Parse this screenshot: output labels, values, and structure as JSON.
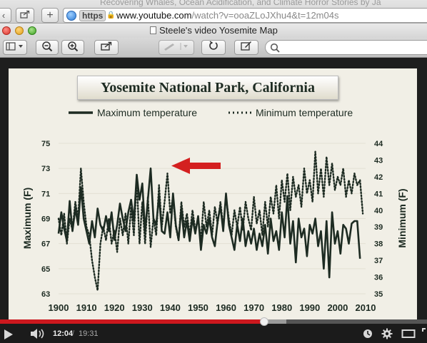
{
  "browser": {
    "background_tab_title": "Recovering Whales, Ocean Acidification, and Climate Horror Stories by Ja",
    "url": {
      "protocol_badge": "https",
      "host": "www.youtube.com",
      "path": "/watch?v=ooaZLoJXhu4&t=12m04s"
    },
    "window_title": "Steele's video Yosemite Map",
    "toolbar_icons": [
      "sidebar-icon",
      "zoom-out-icon",
      "zoom-in-icon",
      "share-icon",
      "annotate-icon",
      "rotate-icon",
      "edit-icon",
      "search-icon"
    ]
  },
  "slide": {
    "title": "Yosemite National Park, California",
    "legend": {
      "max_label": "Maximum temperature",
      "min_label": "Minimum temperature"
    }
  },
  "chart_data": {
    "type": "line",
    "title": "Yosemite National Park, California",
    "xlabel": "",
    "ylabel": "Maximum (F)",
    "y2label": "Minimum (F)",
    "xlim": [
      1900,
      2010
    ],
    "ylim": [
      63,
      75
    ],
    "y2lim": [
      35,
      44
    ],
    "x_ticks": [
      "1900",
      "1910",
      "1920",
      "1930",
      "1940",
      "1950",
      "1960",
      "1970",
      "1980",
      "1990",
      "2000",
      "2010"
    ],
    "y_ticks": [
      "63",
      "65",
      "67",
      "69",
      "71",
      "73",
      "75"
    ],
    "y2_ticks": [
      "35",
      "36",
      "37",
      "38",
      "39",
      "40",
      "41",
      "42",
      "43",
      "44"
    ],
    "legend_position": "top",
    "annotation": "red arrow pointing at the 1933 maximum peak",
    "series": [
      {
        "name": "Maximum temperature",
        "style": "solid",
        "axis": "left",
        "points": [
          [
            1900,
            67.8
          ],
          [
            1901,
            69.5
          ],
          [
            1902,
            68.2
          ],
          [
            1903,
            67.2
          ],
          [
            1904,
            70.4
          ],
          [
            1905,
            68.0
          ],
          [
            1906,
            69.8
          ],
          [
            1907,
            68.5
          ],
          [
            1908,
            71.5
          ],
          [
            1909,
            69.0
          ],
          [
            1910,
            68.0
          ],
          [
            1911,
            67.0
          ],
          [
            1912,
            68.8
          ],
          [
            1913,
            67.5
          ],
          [
            1914,
            69.8
          ],
          [
            1915,
            68.5
          ],
          [
            1916,
            68.0
          ],
          [
            1917,
            69.2
          ],
          [
            1918,
            68.0
          ],
          [
            1919,
            69.5
          ],
          [
            1920,
            67.3
          ],
          [
            1921,
            68.5
          ],
          [
            1922,
            70.2
          ],
          [
            1923,
            69.0
          ],
          [
            1924,
            68.0
          ],
          [
            1925,
            69.5
          ],
          [
            1926,
            70.5
          ],
          [
            1927,
            68.8
          ],
          [
            1928,
            72.5
          ],
          [
            1929,
            70.5
          ],
          [
            1930,
            71.8
          ],
          [
            1931,
            68.0
          ],
          [
            1932,
            70.5
          ],
          [
            1933,
            73.0
          ],
          [
            1934,
            69.0
          ],
          [
            1935,
            68.5
          ],
          [
            1936,
            70.8
          ],
          [
            1937,
            68.0
          ],
          [
            1938,
            67.8
          ],
          [
            1939,
            69.5
          ],
          [
            1940,
            67.5
          ],
          [
            1941,
            71.0
          ],
          [
            1942,
            68.5
          ],
          [
            1943,
            67.3
          ],
          [
            1944,
            69.8
          ],
          [
            1945,
            67.5
          ],
          [
            1946,
            68.8
          ],
          [
            1947,
            67.2
          ],
          [
            1948,
            69.0
          ],
          [
            1949,
            67.8
          ],
          [
            1950,
            69.2
          ],
          [
            1951,
            66.5
          ],
          [
            1952,
            68.5
          ],
          [
            1953,
            67.8
          ],
          [
            1954,
            69.0
          ],
          [
            1955,
            67.5
          ],
          [
            1956,
            66.8
          ],
          [
            1957,
            68.8
          ],
          [
            1958,
            70.0
          ],
          [
            1959,
            68.0
          ],
          [
            1960,
            71.0
          ],
          [
            1961,
            68.5
          ],
          [
            1962,
            67.5
          ],
          [
            1963,
            66.5
          ],
          [
            1964,
            68.5
          ],
          [
            1965,
            67.2
          ],
          [
            1966,
            69.0
          ],
          [
            1967,
            66.8
          ],
          [
            1968,
            68.0
          ],
          [
            1969,
            67.0
          ],
          [
            1970,
            68.2
          ],
          [
            1971,
            66.5
          ],
          [
            1972,
            67.8
          ],
          [
            1973,
            66.8
          ],
          [
            1974,
            68.5
          ],
          [
            1975,
            66.2
          ],
          [
            1976,
            69.0
          ],
          [
            1977,
            67.2
          ],
          [
            1978,
            68.0
          ],
          [
            1979,
            66.5
          ],
          [
            1980,
            69.5
          ],
          [
            1981,
            67.5
          ],
          [
            1982,
            70.8
          ],
          [
            1983,
            67.0
          ],
          [
            1984,
            68.8
          ],
          [
            1985,
            65.5
          ],
          [
            1986,
            69.0
          ],
          [
            1987,
            67.5
          ],
          [
            1988,
            68.2
          ],
          [
            1989,
            66.0
          ],
          [
            1990,
            68.5
          ],
          [
            1991,
            67.8
          ],
          [
            1992,
            69.0
          ],
          [
            1993,
            66.8
          ],
          [
            1994,
            68.0
          ],
          [
            1995,
            65.0
          ],
          [
            1996,
            68.8
          ],
          [
            1997,
            64.3
          ],
          [
            1998,
            69.5
          ],
          [
            1999,
            67.0
          ],
          [
            2000,
            68.0
          ],
          [
            2001,
            66.2
          ],
          [
            2002,
            68.5
          ],
          [
            2003,
            68.2
          ],
          [
            2004,
            67.0
          ],
          [
            2005,
            68.6
          ],
          [
            2006,
            68.8
          ],
          [
            2007,
            68.8
          ],
          [
            2008,
            65.8
          ]
        ]
      },
      {
        "name": "Minimum temperature",
        "style": "dotted",
        "axis": "right",
        "points": [
          [
            1900,
            39.5
          ],
          [
            1901,
            38.5
          ],
          [
            1902,
            39.8
          ],
          [
            1903,
            38.0
          ],
          [
            1904,
            39.5
          ],
          [
            1905,
            38.8
          ],
          [
            1906,
            40.5
          ],
          [
            1907,
            39.5
          ],
          [
            1908,
            42.5
          ],
          [
            1909,
            40.5
          ],
          [
            1910,
            39.0
          ],
          [
            1911,
            38.5
          ],
          [
            1912,
            37.0
          ],
          [
            1913,
            36.0
          ],
          [
            1914,
            35.2
          ],
          [
            1915,
            38.0
          ],
          [
            1916,
            39.0
          ],
          [
            1917,
            38.2
          ],
          [
            1918,
            39.5
          ],
          [
            1919,
            38.0
          ],
          [
            1920,
            38.8
          ],
          [
            1921,
            37.5
          ],
          [
            1922,
            39.5
          ],
          [
            1923,
            38.5
          ],
          [
            1924,
            39.8
          ],
          [
            1925,
            38.0
          ],
          [
            1926,
            40.2
          ],
          [
            1927,
            38.5
          ],
          [
            1928,
            41.8
          ],
          [
            1929,
            38.0
          ],
          [
            1930,
            40.5
          ],
          [
            1931,
            38.0
          ],
          [
            1932,
            40.8
          ],
          [
            1933,
            37.8
          ],
          [
            1934,
            39.5
          ],
          [
            1935,
            38.5
          ],
          [
            1936,
            41.5
          ],
          [
            1937,
            39.0
          ],
          [
            1938,
            40.5
          ],
          [
            1939,
            42.2
          ],
          [
            1940,
            39.8
          ],
          [
            1941,
            40.8
          ],
          [
            1942,
            39.0
          ],
          [
            1943,
            38.2
          ],
          [
            1944,
            40.5
          ],
          [
            1945,
            39.0
          ],
          [
            1946,
            39.8
          ],
          [
            1947,
            38.5
          ],
          [
            1948,
            40.0
          ],
          [
            1949,
            38.8
          ],
          [
            1950,
            39.5
          ],
          [
            1951,
            38.2
          ],
          [
            1952,
            40.5
          ],
          [
            1953,
            39.0
          ],
          [
            1954,
            40.0
          ],
          [
            1955,
            38.5
          ],
          [
            1956,
            40.2
          ],
          [
            1957,
            39.2
          ],
          [
            1958,
            40.5
          ],
          [
            1959,
            39.0
          ],
          [
            1960,
            40.8
          ],
          [
            1961,
            39.5
          ],
          [
            1962,
            38.5
          ],
          [
            1963,
            40.0
          ],
          [
            1964,
            39.0
          ],
          [
            1965,
            40.2
          ],
          [
            1966,
            38.8
          ],
          [
            1967,
            40.5
          ],
          [
            1968,
            39.5
          ],
          [
            1969,
            38.8
          ],
          [
            1970,
            40.8
          ],
          [
            1971,
            39.2
          ],
          [
            1972,
            40.0
          ],
          [
            1973,
            38.5
          ],
          [
            1974,
            40.5
          ],
          [
            1975,
            39.0
          ],
          [
            1976,
            40.8
          ],
          [
            1977,
            39.8
          ],
          [
            1978,
            41.5
          ],
          [
            1979,
            39.5
          ],
          [
            1980,
            41.8
          ],
          [
            1981,
            40.5
          ],
          [
            1982,
            42.2
          ],
          [
            1983,
            40.0
          ],
          [
            1984,
            42.0
          ],
          [
            1985,
            40.8
          ],
          [
            1986,
            41.5
          ],
          [
            1987,
            40.2
          ],
          [
            1988,
            42.5
          ],
          [
            1989,
            41.0
          ],
          [
            1990,
            41.8
          ],
          [
            1991,
            40.5
          ],
          [
            1992,
            43.5
          ],
          [
            1993,
            41.0
          ],
          [
            1994,
            42.5
          ],
          [
            1995,
            40.8
          ],
          [
            1996,
            43.2
          ],
          [
            1997,
            41.5
          ],
          [
            1998,
            42.8
          ],
          [
            1999,
            41.2
          ],
          [
            2000,
            42.0
          ],
          [
            2001,
            41.5
          ],
          [
            2002,
            42.5
          ],
          [
            2003,
            40.8
          ],
          [
            2004,
            41.8
          ],
          [
            2005,
            41.0
          ],
          [
            2006,
            42.2
          ],
          [
            2007,
            41.5
          ],
          [
            2008,
            41.8
          ],
          [
            2009,
            39.8
          ]
        ]
      }
    ]
  },
  "player": {
    "current_time": "12:04",
    "separator": "/",
    "total_time": "19:31",
    "progress": 0.618,
    "buffered": 0.67,
    "progress_color": "#cc181e",
    "icons": [
      "play-icon",
      "volume-icon",
      "watch-later-icon",
      "settings-gear-icon",
      "theater-mode-icon",
      "fullscreen-icon"
    ]
  }
}
